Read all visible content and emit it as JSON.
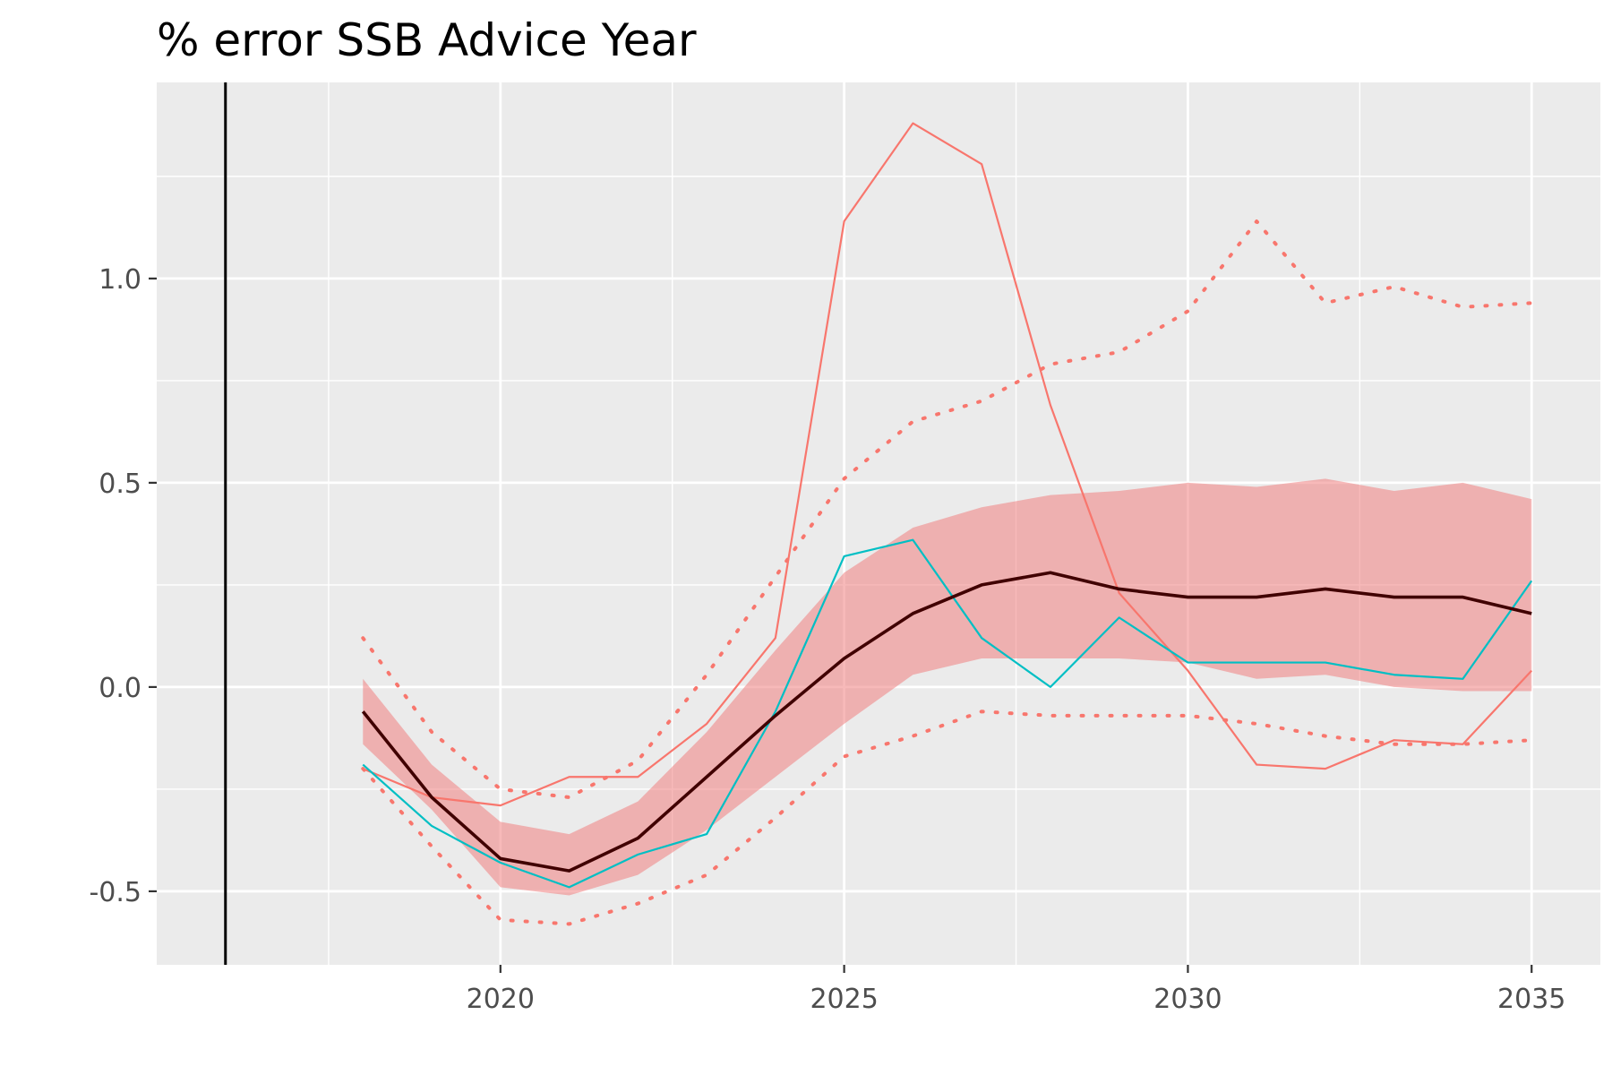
{
  "chart_data": {
    "type": "line",
    "title": "% error SSB Advice Year",
    "xlabel": "",
    "ylabel": "",
    "xlim": [
      2015.0,
      2036.0
    ],
    "ylim": [
      -0.68,
      1.48
    ],
    "x_ticks": [
      2020,
      2025,
      2030,
      2035
    ],
    "y_ticks": [
      -0.5,
      0.0,
      0.5,
      1.0
    ],
    "x_tick_labels": [
      "2020",
      "2025",
      "2030",
      "2035"
    ],
    "y_tick_labels": [
      "-0.5",
      "0.0",
      "0.5",
      "1.0"
    ],
    "grid": true,
    "legend": "none",
    "reference_line_x": 2016.0,
    "x": [
      2018,
      2019,
      2020,
      2021,
      2022,
      2023,
      2024,
      2025,
      2026,
      2027,
      2028,
      2029,
      2030,
      2031,
      2032,
      2033,
      2034,
      2035
    ],
    "band": {
      "lower": [
        -0.14,
        -0.3,
        -0.49,
        -0.51,
        -0.46,
        -0.35,
        -0.22,
        -0.09,
        0.03,
        0.07,
        0.07,
        0.07,
        0.06,
        0.02,
        0.03,
        0.0,
        -0.01,
        -0.01
      ],
      "upper": [
        0.02,
        -0.19,
        -0.33,
        -0.36,
        -0.28,
        -0.11,
        0.09,
        0.28,
        0.39,
        0.44,
        0.47,
        0.48,
        0.5,
        0.49,
        0.51,
        0.48,
        0.5,
        0.46
      ]
    },
    "series": [
      {
        "role": "median",
        "values": [
          -0.06,
          -0.27,
          -0.42,
          -0.45,
          -0.37,
          -0.22,
          -0.07,
          0.07,
          0.18,
          0.25,
          0.28,
          0.24,
          0.22,
          0.22,
          0.24,
          0.22,
          0.22,
          0.18
        ]
      },
      {
        "role": "upper-quantile",
        "values": [
          0.12,
          -0.11,
          -0.25,
          -0.27,
          -0.18,
          0.03,
          0.27,
          0.51,
          0.65,
          0.7,
          0.79,
          0.82,
          0.92,
          1.14,
          0.94,
          0.98,
          0.93,
          0.94
        ]
      },
      {
        "role": "lower-quantile",
        "values": [
          -0.2,
          -0.39,
          -0.57,
          -0.58,
          -0.53,
          -0.46,
          -0.32,
          -0.17,
          -0.12,
          -0.06,
          -0.07,
          -0.07,
          -0.07,
          -0.09,
          -0.12,
          -0.14,
          -0.14,
          -0.13
        ]
      },
      {
        "role": "iteration-1",
        "values": [
          -0.2,
          -0.27,
          -0.29,
          -0.22,
          -0.22,
          -0.09,
          0.12,
          1.14,
          1.38,
          1.28,
          0.69,
          0.23,
          0.04,
          -0.19,
          -0.2,
          -0.13,
          -0.14,
          0.04
        ]
      },
      {
        "role": "iteration-2",
        "values": [
          -0.19,
          -0.34,
          -0.43,
          -0.49,
          -0.41,
          -0.36,
          -0.06,
          0.32,
          0.36,
          0.12,
          0.0,
          0.17,
          0.06,
          0.06,
          0.06,
          0.03,
          0.02,
          0.26
        ]
      }
    ],
    "colors": {
      "panel_background": "#ebebeb",
      "grid_major": "#ffffff",
      "band_fill": "#f08080",
      "median": "#400000",
      "quantile": "#f8766d",
      "iteration_1": "#f8766d",
      "iteration_2": "#00bfc4",
      "reference_line": "#000000"
    }
  }
}
